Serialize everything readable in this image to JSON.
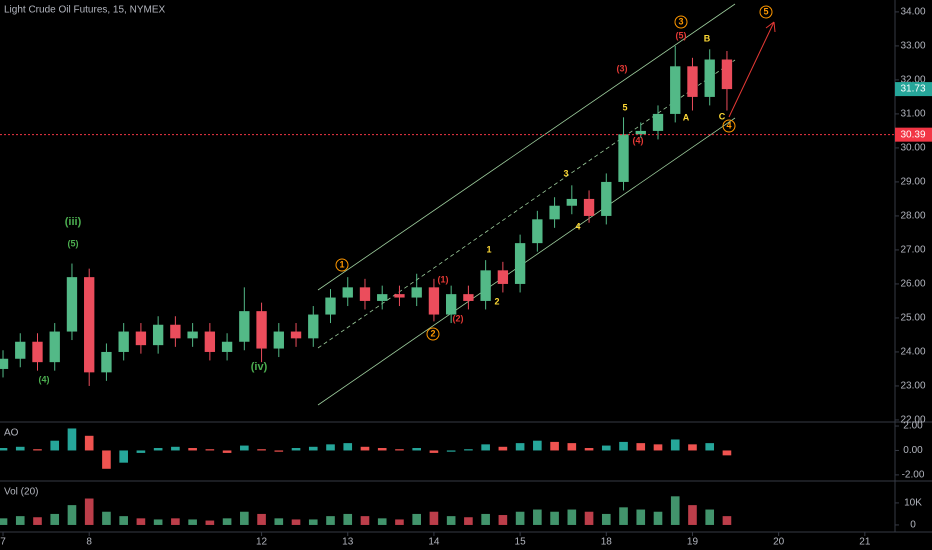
{
  "chart_data": [
    {
      "type": "candlestick",
      "title": "Light Crude Oil Futures, 15, NYMEX",
      "x": [
        0,
        0.2,
        0.4,
        0.6,
        0.8,
        1.0,
        1.2,
        1.4,
        1.6,
        1.8,
        2.0,
        2.2,
        2.4,
        2.6,
        2.8,
        3.0,
        3.2,
        3.4,
        3.6,
        3.8,
        4.0,
        4.2,
        4.4,
        4.6,
        4.8,
        5.0,
        5.2,
        5.4,
        5.6,
        5.8,
        6.0,
        6.2,
        6.4,
        6.6,
        6.8,
        7.0,
        7.2,
        7.4,
        7.6,
        7.8,
        8.0,
        8.2,
        8.4
      ],
      "open": [
        23.5,
        23.8,
        24.3,
        23.7,
        24.6,
        26.2,
        23.4,
        24.0,
        24.6,
        24.2,
        24.8,
        24.4,
        24.6,
        24.0,
        24.3,
        25.2,
        24.1,
        24.6,
        24.4,
        25.1,
        25.6,
        25.9,
        25.5,
        25.7,
        25.6,
        25.9,
        25.1,
        25.7,
        25.5,
        26.4,
        26.0,
        27.2,
        27.9,
        28.3,
        28.5,
        28.0,
        29.0,
        30.4,
        30.5,
        31.0,
        32.4,
        31.5,
        32.6
      ],
      "high": [
        24.05,
        24.55,
        24.55,
        24.85,
        26.6,
        26.45,
        24.25,
        24.85,
        24.85,
        25.05,
        25.05,
        24.85,
        24.85,
        24.55,
        25.9,
        25.45,
        24.85,
        24.85,
        25.35,
        25.85,
        26.2,
        26.15,
        25.95,
        25.95,
        26.3,
        26.15,
        25.95,
        25.95,
        26.7,
        26.65,
        27.45,
        28.15,
        28.55,
        28.9,
        28.75,
        29.25,
        30.9,
        30.75,
        31.25,
        33.0,
        32.65,
        32.9,
        32.85
      ],
      "low": [
        23.25,
        23.55,
        23.45,
        23.45,
        24.35,
        23.0,
        23.15,
        23.75,
        23.95,
        23.95,
        24.15,
        24.15,
        23.75,
        23.75,
        24.05,
        23.7,
        23.85,
        24.15,
        24.15,
        24.85,
        25.35,
        25.25,
        25.25,
        25.35,
        25.35,
        24.9,
        24.85,
        25.25,
        25.25,
        25.75,
        25.75,
        26.95,
        27.65,
        28.05,
        27.8,
        27.75,
        28.75,
        30.3,
        30.25,
        30.75,
        31.1,
        31.25,
        31.1
      ],
      "close": [
        23.8,
        24.3,
        23.7,
        24.6,
        26.2,
        23.4,
        24.0,
        24.6,
        24.2,
        24.8,
        24.4,
        24.6,
        24.0,
        24.3,
        25.2,
        24.1,
        24.6,
        24.4,
        25.1,
        25.6,
        25.9,
        25.5,
        25.7,
        25.6,
        25.9,
        25.1,
        25.7,
        25.5,
        26.4,
        26.0,
        27.2,
        27.9,
        28.3,
        28.5,
        28.0,
        29.0,
        30.4,
        30.5,
        31.0,
        32.4,
        31.5,
        32.6,
        31.73
      ],
      "up_color": "#53b987",
      "down_color": "#eb4d5c",
      "xlim": [
        -0.035,
        10.35
      ],
      "xticks": [
        {
          "value": 0,
          "label": "7"
        },
        {
          "value": 1,
          "label": "8"
        },
        {
          "value": 3,
          "label": "12"
        },
        {
          "value": 4,
          "label": "13"
        },
        {
          "value": 5,
          "label": "14"
        },
        {
          "value": 6,
          "label": "15"
        },
        {
          "value": 7,
          "label": "18"
        },
        {
          "value": 8,
          "label": "19"
        },
        {
          "value": 9,
          "label": "20"
        },
        {
          "value": 10,
          "label": "21"
        }
      ],
      "ylim": [
        21.94,
        34.35
      ],
      "yticks": [
        {
          "value": 22,
          "label": "22.00"
        },
        {
          "value": 23,
          "label": "23.00"
        },
        {
          "value": 24,
          "label": "24.00"
        },
        {
          "value": 25,
          "label": "25.00"
        },
        {
          "value": 26,
          "label": "26.00"
        },
        {
          "value": 27,
          "label": "27.00"
        },
        {
          "value": 28,
          "label": "28.00"
        },
        {
          "value": 29,
          "label": "29.00"
        },
        {
          "value": 30,
          "label": "30.00"
        },
        {
          "value": 31,
          "label": "31.00"
        },
        {
          "value": 32,
          "label": "32.00"
        },
        {
          "value": 33,
          "label": "33.00"
        },
        {
          "value": 34,
          "label": "34.00"
        }
      ],
      "last_price": 31.73,
      "last_price_color": "#26a69a",
      "hline": 30.39,
      "hline_color": "#f23645",
      "grid": false,
      "annotations": [
        "(iii)",
        "(5)",
        "(4)",
        "(iv)",
        "1",
        "2",
        "(1)",
        "(2)",
        "1",
        "2",
        "3",
        "4",
        "(3)",
        "5",
        "(4)",
        "3",
        "(5)",
        "A",
        "B",
        "C",
        "4",
        "5"
      ]
    },
    {
      "type": "bar",
      "title": "AO",
      "x": [
        0,
        0.2,
        0.4,
        0.6,
        0.8,
        1.0,
        1.2,
        1.4,
        1.6,
        1.8,
        2.0,
        2.2,
        2.4,
        2.6,
        2.8,
        3.0,
        3.2,
        3.4,
        3.6,
        3.8,
        4.0,
        4.2,
        4.4,
        4.6,
        4.8,
        5.0,
        5.2,
        5.4,
        5.6,
        5.8,
        6.0,
        6.2,
        6.4,
        6.6,
        6.8,
        7.0,
        7.2,
        7.4,
        7.6,
        7.8,
        8.0,
        8.2,
        8.4
      ],
      "values": [
        0.2,
        0.3,
        0.1,
        0.8,
        1.8,
        1.2,
        -1.5,
        -1.0,
        -0.2,
        0.2,
        0.3,
        0.2,
        0.1,
        -0.2,
        0.4,
        0.1,
        -0.1,
        0.2,
        0.3,
        0.5,
        0.6,
        0.3,
        0.2,
        0.1,
        0.2,
        -0.2,
        -0.1,
        0.1,
        0.5,
        0.3,
        0.6,
        0.8,
        0.7,
        0.6,
        0.2,
        0.4,
        0.7,
        0.6,
        0.5,
        0.9,
        0.5,
        0.6,
        -0.4
      ],
      "up_color": "#26a69a",
      "down_color": "#ef5350",
      "ylim": [
        -2.5,
        2.33
      ],
      "yticks": [
        {
          "value": 2,
          "label": "2.00"
        },
        {
          "value": 0,
          "label": "0.00"
        },
        {
          "value": -2,
          "label": "-2.00"
        }
      ]
    },
    {
      "type": "bar",
      "title": "Vol (20)",
      "x": [
        0,
        0.2,
        0.4,
        0.6,
        0.8,
        1.0,
        1.2,
        1.4,
        1.6,
        1.8,
        2.0,
        2.2,
        2.4,
        2.6,
        2.8,
        3.0,
        3.2,
        3.4,
        3.6,
        3.8,
        4.0,
        4.2,
        4.4,
        4.6,
        4.8,
        5.0,
        5.2,
        5.4,
        5.6,
        5.8,
        6.0,
        6.2,
        6.4,
        6.6,
        6.8,
        7.0,
        7.2,
        7.4,
        7.6,
        7.8,
        8.0,
        8.2,
        8.4
      ],
      "values": [
        3000,
        4000,
        3500,
        5000,
        9000,
        12000,
        6000,
        4000,
        3000,
        2500,
        3000,
        2500,
        2000,
        3000,
        6000,
        5000,
        3000,
        2500,
        2500,
        4000,
        5000,
        4000,
        3000,
        2500,
        5000,
        6000,
        4000,
        3500,
        5000,
        4500,
        6000,
        7000,
        6000,
        7000,
        6000,
        5000,
        8000,
        7000,
        6000,
        13000,
        9000,
        7000,
        4000
      ],
      "up_color": "#53b987",
      "down_color": "#eb4d5c",
      "ylim": [
        -3200,
        19500
      ],
      "yticks": [
        {
          "value": 10000,
          "label": "10K"
        },
        0
      ]
    }
  ]
}
